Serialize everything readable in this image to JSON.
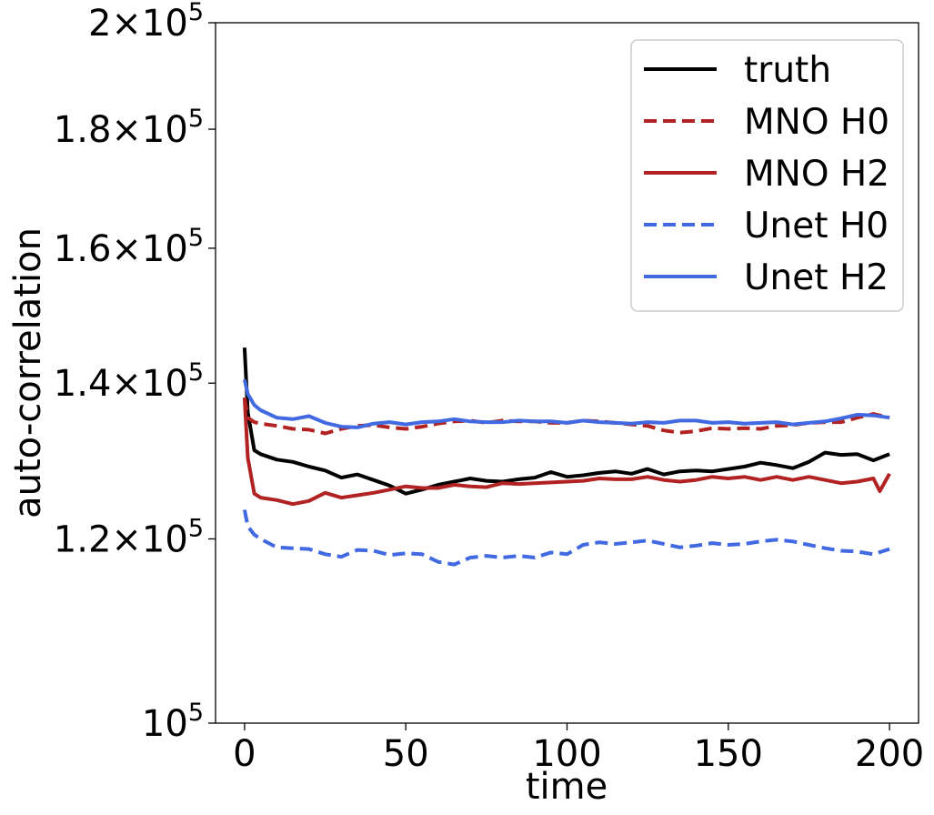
{
  "chart_data": {
    "type": "line",
    "xlabel": "time",
    "ylabel": "auto-correlation",
    "yscale": "log",
    "xlim": [
      -9,
      209
    ],
    "ylim": [
      100000,
      200000
    ],
    "grid": false,
    "legend_position": "top-right",
    "x_ticks": [
      {
        "value": 0,
        "label": "0"
      },
      {
        "value": 50,
        "label": "50"
      },
      {
        "value": 100,
        "label": "100"
      },
      {
        "value": 150,
        "label": "150"
      },
      {
        "value": 200,
        "label": "200"
      }
    ],
    "y_ticks": [
      {
        "value": 100000,
        "mantissa": "",
        "base": "10",
        "exp": "5"
      },
      {
        "value": 120000,
        "mantissa": "1.2",
        "base": "10",
        "exp": "5"
      },
      {
        "value": 140000,
        "mantissa": "1.4",
        "base": "10",
        "exp": "5"
      },
      {
        "value": 160000,
        "mantissa": "1.6",
        "base": "10",
        "exp": "5"
      },
      {
        "value": 180000,
        "mantissa": "1.8",
        "base": "10",
        "exp": "5"
      },
      {
        "value": 200000,
        "mantissa": "2",
        "base": "10",
        "exp": "5"
      }
    ],
    "series": [
      {
        "name": "truth",
        "color": "#000000",
        "dash": "solid",
        "x": [
          0,
          1,
          3,
          5,
          10,
          15,
          20,
          25,
          30,
          35,
          40,
          45,
          50,
          55,
          60,
          65,
          70,
          75,
          80,
          85,
          90,
          95,
          100,
          105,
          110,
          115,
          120,
          125,
          130,
          135,
          140,
          145,
          150,
          155,
          160,
          165,
          170,
          175,
          180,
          185,
          190,
          195,
          200
        ],
        "y": [
          145000,
          136000,
          131000,
          130500,
          129800,
          129500,
          128900,
          128400,
          127500,
          127900,
          127200,
          126500,
          125500,
          126000,
          126600,
          127000,
          127400,
          127100,
          127000,
          127300,
          127500,
          128200,
          127600,
          127800,
          128100,
          128300,
          128000,
          128600,
          127900,
          128300,
          128400,
          128300,
          128600,
          128900,
          129400,
          129100,
          128700,
          129500,
          130700,
          130400,
          130500,
          129700,
          130500
        ]
      },
      {
        "name": "MNO H0",
        "color": "#b22222",
        "dash": "dashed",
        "x": [
          0,
          1,
          3,
          5,
          10,
          15,
          20,
          25,
          30,
          35,
          40,
          45,
          50,
          55,
          60,
          65,
          70,
          75,
          80,
          85,
          90,
          95,
          100,
          105,
          110,
          115,
          120,
          125,
          130,
          135,
          140,
          145,
          150,
          155,
          160,
          165,
          170,
          175,
          180,
          185,
          190,
          195,
          200
        ],
        "y": [
          138000,
          135300,
          134700,
          134500,
          134200,
          133800,
          133700,
          133200,
          133800,
          134200,
          134300,
          134000,
          133800,
          134100,
          134500,
          134800,
          134900,
          134600,
          134900,
          134800,
          134800,
          134600,
          134600,
          134900,
          134800,
          134600,
          134400,
          134200,
          133600,
          133300,
          133500,
          133900,
          133800,
          133900,
          133800,
          134200,
          134300,
          134600,
          134700,
          134700,
          135300,
          135800,
          135300
        ]
      },
      {
        "name": "MNO H2",
        "color": "#b22222",
        "dash": "solid",
        "x": [
          0,
          1,
          3,
          5,
          10,
          15,
          20,
          25,
          30,
          35,
          40,
          45,
          50,
          55,
          60,
          65,
          70,
          75,
          80,
          85,
          90,
          95,
          100,
          105,
          110,
          115,
          120,
          125,
          130,
          135,
          140,
          145,
          150,
          155,
          160,
          165,
          170,
          175,
          180,
          185,
          190,
          195,
          197,
          200
        ],
        "y": [
          138000,
          130000,
          125500,
          125000,
          124700,
          124200,
          124600,
          125600,
          125000,
          125300,
          125600,
          126000,
          126400,
          126200,
          126200,
          126600,
          126400,
          126300,
          126800,
          126700,
          126800,
          126900,
          127000,
          127100,
          127400,
          127300,
          127300,
          127600,
          127200,
          127000,
          127200,
          127600,
          127400,
          127600,
          127200,
          127600,
          127200,
          127600,
          127200,
          126800,
          127000,
          127400,
          125800,
          128000
        ]
      },
      {
        "name": "Unet H0",
        "color": "#4169e1",
        "dash": "dashed",
        "x": [
          0,
          1,
          3,
          5,
          10,
          15,
          20,
          25,
          30,
          35,
          40,
          45,
          50,
          55,
          60,
          65,
          70,
          75,
          80,
          85,
          90,
          95,
          100,
          105,
          110,
          115,
          120,
          125,
          130,
          135,
          140,
          145,
          150,
          155,
          160,
          165,
          170,
          175,
          180,
          185,
          190,
          195,
          200
        ],
        "y": [
          123500,
          121500,
          120500,
          120000,
          119000,
          118900,
          118800,
          118200,
          117900,
          118700,
          118600,
          118100,
          118300,
          118200,
          117300,
          117000,
          117800,
          118000,
          117800,
          118000,
          117800,
          118400,
          118200,
          119300,
          119600,
          119400,
          119600,
          119800,
          119400,
          119000,
          119200,
          119500,
          119300,
          119400,
          119700,
          119900,
          119700,
          119300,
          118900,
          118600,
          118500,
          118200,
          118800
        ]
      },
      {
        "name": "Unet H2",
        "color": "#4169e1",
        "dash": "solid",
        "x": [
          0,
          1,
          3,
          5,
          10,
          15,
          20,
          25,
          30,
          35,
          40,
          45,
          50,
          55,
          60,
          65,
          70,
          75,
          80,
          85,
          90,
          95,
          100,
          105,
          110,
          115,
          120,
          125,
          130,
          135,
          140,
          145,
          150,
          155,
          160,
          165,
          170,
          175,
          180,
          185,
          190,
          195,
          200
        ],
        "y": [
          140500,
          138500,
          137000,
          136300,
          135300,
          135100,
          135500,
          134600,
          134100,
          134000,
          134500,
          134700,
          134400,
          134700,
          134800,
          135100,
          134800,
          134700,
          134700,
          134900,
          134800,
          134800,
          134600,
          134900,
          134700,
          134600,
          134500,
          134700,
          134600,
          134900,
          134900,
          134600,
          134700,
          134500,
          134600,
          134700,
          134400,
          134600,
          134800,
          135200,
          135700,
          135600,
          135300
        ]
      }
    ]
  }
}
